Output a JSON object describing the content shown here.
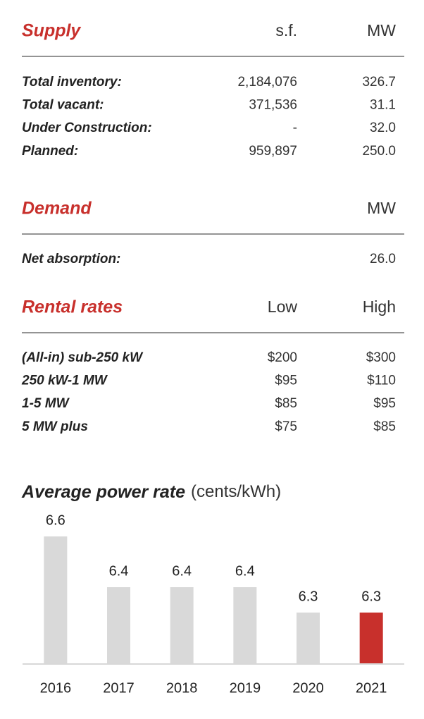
{
  "sections": [
    {
      "title": "Supply",
      "columns": [
        "s.f.",
        "MW"
      ],
      "rows": [
        {
          "label": "Total inventory:",
          "values": [
            "2,184,076",
            "326.7"
          ]
        },
        {
          "label": "Total vacant:",
          "values": [
            "371,536",
            "31.1"
          ]
        },
        {
          "label": "Under Construction:",
          "values": [
            "-",
            "32.0"
          ]
        },
        {
          "label": "Planned:",
          "values": [
            "959,897",
            "250.0"
          ]
        }
      ]
    },
    {
      "title": "Demand",
      "columns": [
        "MW"
      ],
      "rows": [
        {
          "label": "Net absorption:",
          "values": [
            "26.0"
          ]
        }
      ]
    },
    {
      "title": "Rental rates",
      "columns": [
        "Low",
        "High"
      ],
      "rows": [
        {
          "label": "(All-in) sub-250 kW",
          "values": [
            "$200",
            "$300"
          ]
        },
        {
          "label": "250 kW-1 MW",
          "values": [
            "$95",
            "$110"
          ]
        },
        {
          "label": "1-5 MW",
          "values": [
            "$85",
            "$95"
          ]
        },
        {
          "label": "5 MW plus",
          "values": [
            "$75",
            "$85"
          ]
        }
      ]
    }
  ],
  "chart_data": {
    "type": "bar",
    "title": "Average power rate",
    "subtitle": "(cents/kWh)",
    "categories": [
      "2016",
      "2017",
      "2018",
      "2019",
      "2020",
      "2021"
    ],
    "values": [
      6.6,
      6.4,
      6.4,
      6.4,
      6.3,
      6.3
    ],
    "colors": [
      "#d9d9d9",
      "#d9d9d9",
      "#d9d9d9",
      "#d9d9d9",
      "#d9d9d9",
      "#c8302c"
    ],
    "ylim": [
      6.1,
      6.6
    ]
  }
}
